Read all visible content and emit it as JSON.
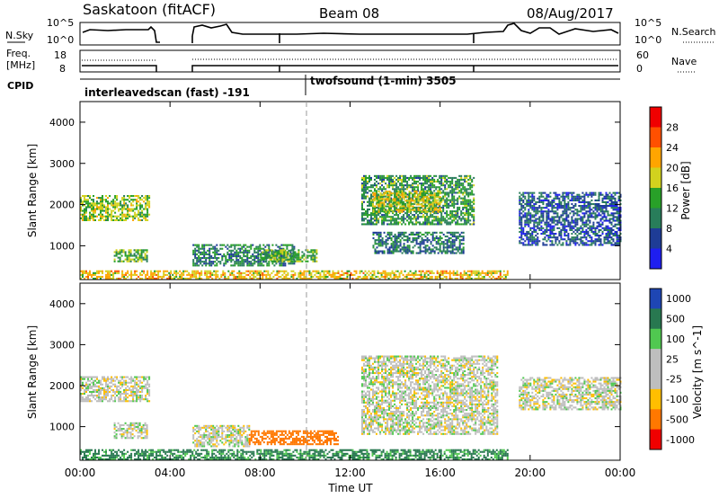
{
  "header": {
    "station": "Saskatoon (fitACF)",
    "beam": "Beam 08",
    "date": "08/Aug/2017"
  },
  "noise_panel": {
    "left_label": "N.Sky",
    "right_label": "N.Search",
    "left_ticks": [
      "10^5",
      "10^0"
    ],
    "right_ticks": [
      "10^5",
      "10^0"
    ]
  },
  "freq_panel": {
    "left_label_1": "Freq.",
    "left_label_2": "[MHz]",
    "right_label": "Nave",
    "left_ticks": [
      "18",
      "8"
    ],
    "right_ticks": [
      "60",
      "0"
    ]
  },
  "cpid": {
    "label": "CPID",
    "segments": [
      {
        "text": "interleavedscan (fast) -191"
      },
      {
        "text": "twofsound (1-min) 3505"
      }
    ]
  },
  "axes": {
    "ylabel": "Slant Range [km]",
    "xlabel": "Time UT",
    "yticks": [
      "1000",
      "2000",
      "3000",
      "4000"
    ],
    "xticks": [
      "00:00",
      "04:00",
      "08:00",
      "12:00",
      "16:00",
      "20:00",
      "00:00"
    ]
  },
  "colors": {
    "power_scale": [
      "#1e1ef0",
      "#1e3c96",
      "#287d5a",
      "#28a028",
      "#d2d21e",
      "#ffa500",
      "#ff5000",
      "#f00000"
    ],
    "velocity_scale": [
      "#f00000",
      "#ff7800",
      "#ffbe00",
      "#bebebe",
      "#bebebe",
      "#50c850",
      "#287850",
      "#1e46b4"
    ],
    "ground_scatter": "#bebebe"
  },
  "chart_data": [
    {
      "type": "heatmap",
      "title": "Power",
      "colorbar_label": "Power [dB]",
      "colorbar_ticks": [
        "4",
        "8",
        "12",
        "16",
        "20",
        "24",
        "28"
      ],
      "x_range_hours": [
        0,
        24
      ],
      "y_range_km": [
        180,
        4500
      ],
      "regions": [
        {
          "t0": 0.0,
          "t1": 3.1,
          "r0": 1600,
          "r1": 2200,
          "level": 16
        },
        {
          "t0": 1.5,
          "t1": 3.0,
          "r0": 600,
          "r1": 900,
          "level": 14
        },
        {
          "t0": 5.0,
          "t1": 9.5,
          "r0": 500,
          "r1": 1000,
          "level": 10
        },
        {
          "t0": 8.0,
          "t1": 10.5,
          "r0": 600,
          "r1": 900,
          "level": 14
        },
        {
          "t0": 12.5,
          "t1": 17.5,
          "r0": 1500,
          "r1": 2700,
          "level": 12
        },
        {
          "t0": 13.0,
          "t1": 16.0,
          "r0": 1800,
          "r1": 2300,
          "level": 18
        },
        {
          "t0": 13.0,
          "t1": 17.0,
          "r0": 800,
          "r1": 1300,
          "level": 9
        },
        {
          "t0": 19.5,
          "t1": 24.0,
          "r0": 1000,
          "r1": 2300,
          "level": 7
        },
        {
          "t0": 0.0,
          "t1": 19.0,
          "r0": 180,
          "r1": 400,
          "level": 20
        }
      ]
    },
    {
      "type": "heatmap",
      "title": "Velocity",
      "colorbar_label": "Velocity [m s^-1]",
      "colorbar_ticks": [
        "1000",
        "500",
        "100",
        "25",
        "-25",
        "-100",
        "-500",
        "-1000"
      ],
      "x_range_hours": [
        0,
        24
      ],
      "y_range_km": [
        180,
        4500
      ],
      "regions": [
        {
          "t0": 0.0,
          "t1": 3.1,
          "r0": 1600,
          "r1": 2200,
          "level": 0
        },
        {
          "t0": 1.5,
          "t1": 3.0,
          "r0": 700,
          "r1": 1100,
          "level": 0
        },
        {
          "t0": 5.0,
          "t1": 7.5,
          "r0": 500,
          "r1": 1000,
          "level": 0
        },
        {
          "t0": 7.5,
          "t1": 11.5,
          "r0": 550,
          "r1": 900,
          "level": -300
        },
        {
          "t0": 12.5,
          "t1": 18.5,
          "r0": 800,
          "r1": 2700,
          "level": 0
        },
        {
          "t0": 19.5,
          "t1": 24.0,
          "r0": 1400,
          "r1": 2200,
          "level": 0
        },
        {
          "t0": 0.0,
          "t1": 19.0,
          "r0": 180,
          "r1": 450,
          "level": 120
        }
      ]
    }
  ]
}
